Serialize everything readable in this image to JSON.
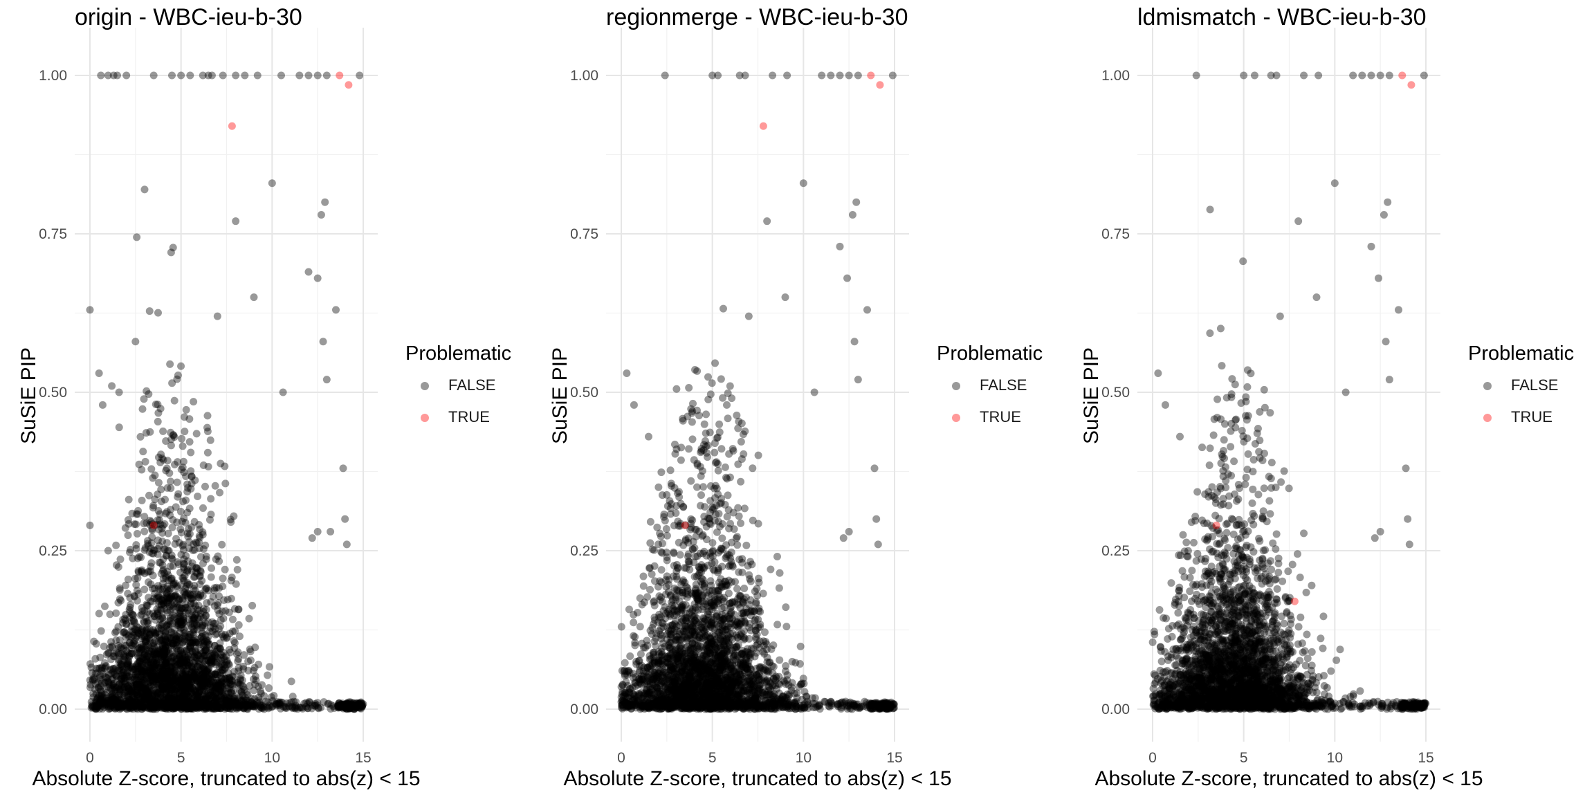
{
  "chart_data": [
    {
      "type": "scatter",
      "title": "origin - WBC-ieu-b-30",
      "xlabel": "Absolute Z-score, truncated to abs(z) < 15",
      "ylabel": "SuSiE PIP",
      "xlim": [
        0,
        15
      ],
      "ylim": [
        0,
        1
      ],
      "xticks": [
        0,
        5,
        10,
        15
      ],
      "yticks": [
        0,
        0.25,
        0.5,
        0.75,
        1.0
      ],
      "ytick_labels": [
        "0.00",
        "0.25",
        "0.50",
        "0.75",
        "1.00"
      ],
      "grid": true,
      "legend": {
        "title": "Problematic",
        "position": "right",
        "entries": [
          {
            "label": "FALSE",
            "color": "#000000"
          },
          {
            "label": "TRUE",
            "color": "#ff0000"
          }
        ]
      },
      "series": [
        {
          "name": "FALSE",
          "color": "#000000",
          "alpha": 0.4,
          "seed": 11,
          "n_background": 2600,
          "points": [
            [
              0.6,
              1.0
            ],
            [
              1.0,
              1.0
            ],
            [
              1.3,
              1.0
            ],
            [
              1.5,
              1.0
            ],
            [
              2.0,
              1.0
            ],
            [
              3.5,
              1.0
            ],
            [
              4.5,
              1.0
            ],
            [
              5.0,
              1.0
            ],
            [
              5.5,
              1.0
            ],
            [
              6.2,
              1.0
            ],
            [
              6.5,
              1.0
            ],
            [
              6.7,
              1.0
            ],
            [
              7.3,
              1.0
            ],
            [
              8.0,
              1.0
            ],
            [
              8.5,
              1.0
            ],
            [
              9.2,
              1.0
            ],
            [
              10.5,
              1.0
            ],
            [
              11.5,
              1.0
            ],
            [
              12.0,
              1.0
            ],
            [
              12.5,
              1.0
            ],
            [
              13.0,
              1.0
            ],
            [
              14.8,
              1.0
            ],
            [
              0.0,
              0.63
            ],
            [
              0.5,
              0.53
            ],
            [
              0.7,
              0.48
            ],
            [
              1.2,
              0.51
            ],
            [
              1.6,
              0.5
            ],
            [
              0.0,
              0.29
            ],
            [
              1.0,
              0.25
            ],
            [
              2.5,
              0.58
            ],
            [
              3.0,
              0.82
            ],
            [
              12.0,
              0.69
            ],
            [
              12.5,
              0.68
            ],
            [
              12.8,
              0.58
            ],
            [
              13.0,
              0.52
            ],
            [
              13.5,
              0.63
            ],
            [
              13.9,
              0.38
            ],
            [
              14.0,
              0.3
            ],
            [
              14.1,
              0.26
            ],
            [
              10.6,
              0.5
            ],
            [
              10.0,
              0.83
            ],
            [
              12.7,
              0.78
            ],
            [
              12.9,
              0.8
            ],
            [
              12.2,
              0.27
            ],
            [
              12.5,
              0.28
            ],
            [
              13.2,
              0.28
            ],
            [
              7.0,
              0.62
            ],
            [
              8.0,
              0.77
            ],
            [
              9.0,
              0.65
            ]
          ]
        },
        {
          "name": "TRUE",
          "color": "#ff0000",
          "alpha": 0.4,
          "points": [
            [
              7.8,
              0.92
            ],
            [
              13.7,
              1.0
            ],
            [
              14.2,
              0.985
            ],
            [
              3.5,
              0.29
            ]
          ]
        }
      ]
    },
    {
      "type": "scatter",
      "title": "regionmerge - WBC-ieu-b-30",
      "xlabel": "Absolute Z-score, truncated to abs(z) < 15",
      "ylabel": "SuSiE PIP",
      "xlim": [
        0,
        15
      ],
      "ylim": [
        0,
        1
      ],
      "xticks": [
        0,
        5,
        10,
        15
      ],
      "yticks": [
        0,
        0.25,
        0.5,
        0.75,
        1.0
      ],
      "ytick_labels": [
        "0.00",
        "0.25",
        "0.50",
        "0.75",
        "1.00"
      ],
      "grid": true,
      "legend": {
        "title": "Problematic",
        "position": "right",
        "entries": [
          {
            "label": "FALSE",
            "color": "#000000"
          },
          {
            "label": "TRUE",
            "color": "#ff0000"
          }
        ]
      },
      "series": [
        {
          "name": "FALSE",
          "color": "#000000",
          "alpha": 0.4,
          "seed": 23,
          "n_background": 2600,
          "points": [
            [
              2.4,
              1.0
            ],
            [
              5.0,
              1.0
            ],
            [
              5.3,
              1.0
            ],
            [
              6.5,
              1.0
            ],
            [
              6.8,
              1.0
            ],
            [
              8.3,
              1.0
            ],
            [
              9.1,
              1.0
            ],
            [
              11.0,
              1.0
            ],
            [
              11.5,
              1.0
            ],
            [
              12.0,
              1.0
            ],
            [
              12.5,
              1.0
            ],
            [
              13.0,
              1.0
            ],
            [
              14.9,
              1.0
            ],
            [
              0.3,
              0.53
            ],
            [
              0.7,
              0.48
            ],
            [
              1.5,
              0.43
            ],
            [
              12.0,
              0.73
            ],
            [
              12.4,
              0.68
            ],
            [
              12.8,
              0.58
            ],
            [
              13.0,
              0.52
            ],
            [
              13.5,
              0.63
            ],
            [
              13.9,
              0.38
            ],
            [
              14.0,
              0.3
            ],
            [
              14.1,
              0.26
            ],
            [
              10.6,
              0.5
            ],
            [
              10.0,
              0.83
            ],
            [
              12.7,
              0.78
            ],
            [
              12.9,
              0.8
            ],
            [
              12.2,
              0.27
            ],
            [
              12.5,
              0.28
            ],
            [
              7.0,
              0.62
            ],
            [
              8.0,
              0.77
            ],
            [
              9.0,
              0.65
            ]
          ]
        },
        {
          "name": "TRUE",
          "color": "#ff0000",
          "alpha": 0.4,
          "points": [
            [
              7.8,
              0.92
            ],
            [
              13.7,
              1.0
            ],
            [
              14.2,
              0.985
            ],
            [
              3.5,
              0.29
            ]
          ]
        }
      ]
    },
    {
      "type": "scatter",
      "title": "ldmismatch - WBC-ieu-b-30",
      "xlabel": "Absolute Z-score, truncated to abs(z) < 15",
      "ylabel": "SuSiE PIP",
      "xlim": [
        0,
        15
      ],
      "ylim": [
        0,
        1
      ],
      "xticks": [
        0,
        5,
        10,
        15
      ],
      "yticks": [
        0,
        0.25,
        0.5,
        0.75,
        1.0
      ],
      "ytick_labels": [
        "0.00",
        "0.25",
        "0.50",
        "0.75",
        "1.00"
      ],
      "grid": true,
      "legend": {
        "title": "Problematic",
        "position": "right",
        "entries": [
          {
            "label": "FALSE",
            "color": "#000000"
          },
          {
            "label": "TRUE",
            "color": "#ff0000"
          }
        ]
      },
      "series": [
        {
          "name": "FALSE",
          "color": "#000000",
          "alpha": 0.4,
          "seed": 37,
          "n_background": 2600,
          "points": [
            [
              2.4,
              1.0
            ],
            [
              5.0,
              1.0
            ],
            [
              5.6,
              1.0
            ],
            [
              6.5,
              1.0
            ],
            [
              6.8,
              1.0
            ],
            [
              8.3,
              1.0
            ],
            [
              9.1,
              1.0
            ],
            [
              11.0,
              1.0
            ],
            [
              11.5,
              1.0
            ],
            [
              12.0,
              1.0
            ],
            [
              12.5,
              1.0
            ],
            [
              13.0,
              1.0
            ],
            [
              14.9,
              1.0
            ],
            [
              0.3,
              0.53
            ],
            [
              0.7,
              0.48
            ],
            [
              1.5,
              0.43
            ],
            [
              12.0,
              0.73
            ],
            [
              12.4,
              0.68
            ],
            [
              12.8,
              0.58
            ],
            [
              13.0,
              0.52
            ],
            [
              13.5,
              0.63
            ],
            [
              13.9,
              0.38
            ],
            [
              14.0,
              0.3
            ],
            [
              14.1,
              0.26
            ],
            [
              10.6,
              0.5
            ],
            [
              10.0,
              0.83
            ],
            [
              12.7,
              0.78
            ],
            [
              12.9,
              0.8
            ],
            [
              12.2,
              0.27
            ],
            [
              12.5,
              0.28
            ],
            [
              7.0,
              0.62
            ],
            [
              8.0,
              0.77
            ],
            [
              9.0,
              0.65
            ]
          ]
        },
        {
          "name": "TRUE",
          "color": "#ff0000",
          "alpha": 0.4,
          "points": [
            [
              7.8,
              0.17
            ],
            [
              13.7,
              1.0
            ],
            [
              14.2,
              0.985
            ],
            [
              3.5,
              0.29
            ]
          ]
        }
      ]
    }
  ]
}
